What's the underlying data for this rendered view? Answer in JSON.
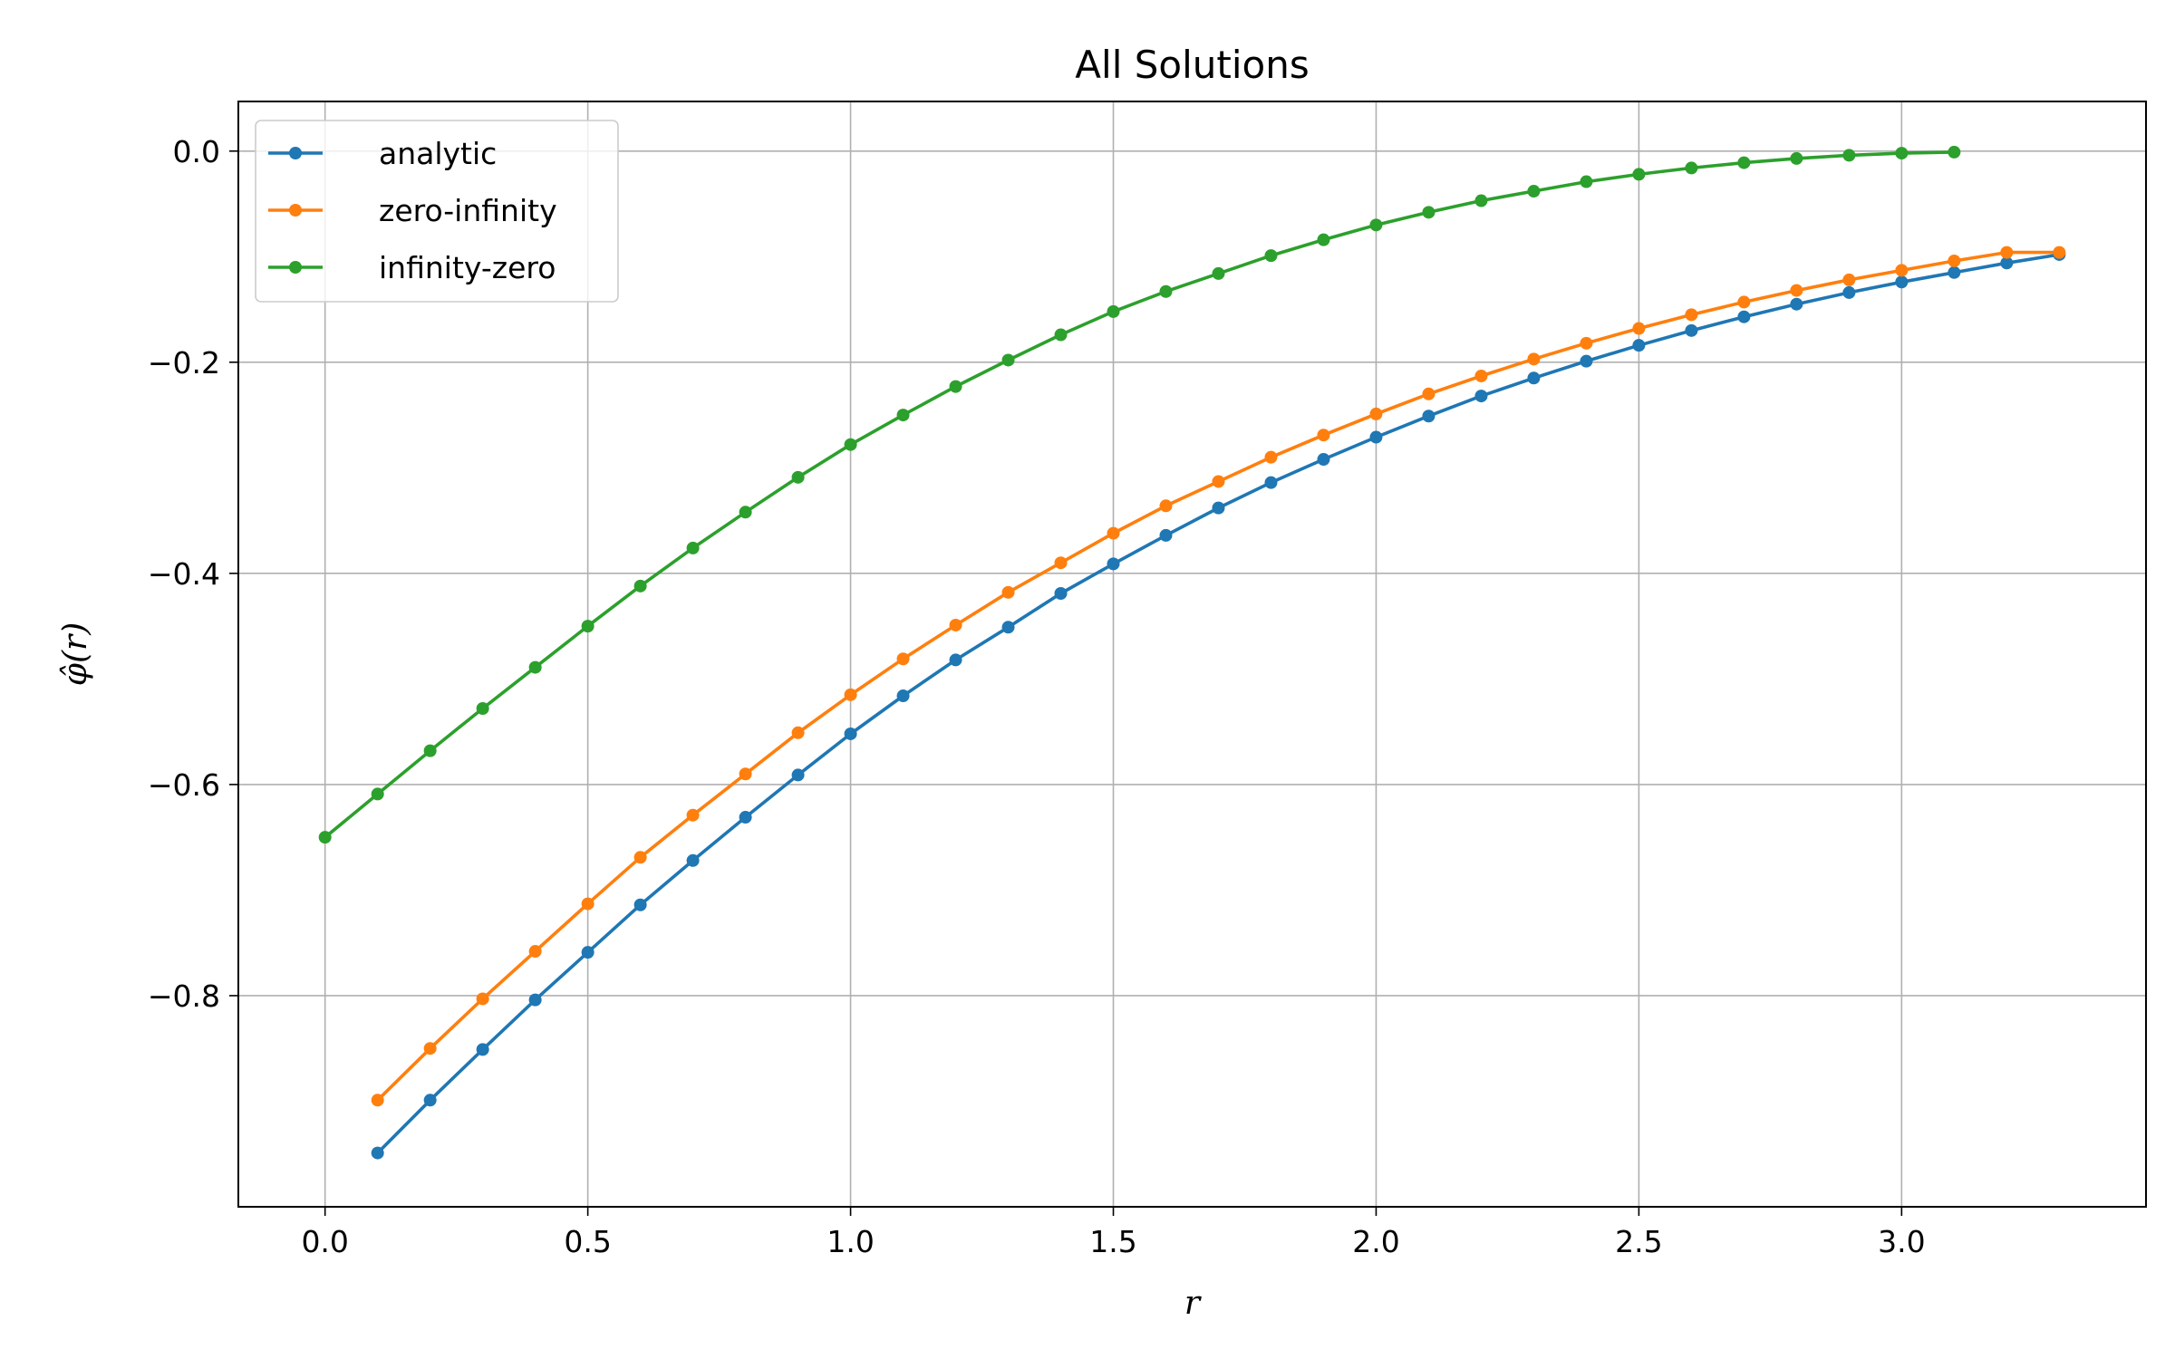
{
  "chart_data": {
    "type": "line",
    "title": "All Solutions",
    "xlabel": "r",
    "ylabel": "φ̂(r)",
    "xlim": [
      -0.165,
      3.465
    ],
    "ylim": [
      -1.0,
      0.047
    ],
    "xticks": [
      0.0,
      0.5,
      1.0,
      1.5,
      2.0,
      2.5,
      3.0
    ],
    "xtick_labels": [
      "0.0",
      "0.5",
      "1.0",
      "1.5",
      "2.0",
      "2.5",
      "3.0"
    ],
    "yticks": [
      0.0,
      -0.2,
      -0.4,
      -0.6,
      -0.8
    ],
    "ytick_labels": [
      "0.0",
      "−0.2",
      "−0.4",
      "−0.6",
      "−0.8"
    ],
    "grid": true,
    "legend_position": "top-left",
    "series": [
      {
        "name": "analytic",
        "color": "#1f77b4",
        "x": [
          0.1,
          0.2,
          0.3,
          0.4,
          0.5,
          0.6,
          0.7,
          0.8,
          0.9,
          1.0,
          1.1,
          1.2,
          1.3,
          1.4,
          1.5,
          1.6,
          1.7,
          1.8,
          1.9,
          2.0,
          2.1,
          2.2,
          2.3,
          2.4,
          2.5,
          2.6,
          2.7,
          2.8,
          2.9,
          3.0,
          3.1,
          3.2,
          3.3
        ],
        "y": [
          -0.949,
          -0.899,
          -0.851,
          -0.804,
          -0.759,
          -0.714,
          -0.672,
          -0.631,
          -0.591,
          -0.552,
          -0.516,
          -0.482,
          -0.451,
          -0.419,
          -0.391,
          -0.364,
          -0.338,
          -0.314,
          -0.292,
          -0.271,
          -0.251,
          -0.232,
          -0.215,
          -0.199,
          -0.184,
          -0.17,
          -0.157,
          -0.145,
          -0.134,
          -0.124,
          -0.115,
          -0.106,
          -0.098
        ]
      },
      {
        "name": "zero-infinity",
        "color": "#ff7f0e",
        "x": [
          0.1,
          0.2,
          0.3,
          0.4,
          0.5,
          0.6,
          0.7,
          0.8,
          0.9,
          1.0,
          1.1,
          1.2,
          1.3,
          1.4,
          1.5,
          1.6,
          1.7,
          1.8,
          1.9,
          2.0,
          2.1,
          2.2,
          2.3,
          2.4,
          2.5,
          2.6,
          2.7,
          2.8,
          2.9,
          3.0,
          3.1,
          3.2,
          3.3
        ],
        "y": [
          -0.899,
          -0.85,
          -0.803,
          -0.758,
          -0.713,
          -0.669,
          -0.629,
          -0.59,
          -0.551,
          -0.515,
          -0.481,
          -0.449,
          -0.418,
          -0.39,
          -0.362,
          -0.336,
          -0.313,
          -0.29,
          -0.269,
          -0.249,
          -0.23,
          -0.213,
          -0.197,
          -0.182,
          -0.168,
          -0.155,
          -0.143,
          -0.132,
          -0.122,
          -0.113,
          -0.104,
          -0.096,
          -0.096
        ]
      },
      {
        "name": "infinity-zero",
        "color": "#2ca02c",
        "x": [
          0.0,
          0.1,
          0.2,
          0.3,
          0.4,
          0.5,
          0.6,
          0.7,
          0.8,
          0.9,
          1.0,
          1.1,
          1.2,
          1.3,
          1.4,
          1.5,
          1.6,
          1.7,
          1.8,
          1.9,
          2.0,
          2.1,
          2.2,
          2.3,
          2.4,
          2.5,
          2.6,
          2.7,
          2.8,
          2.9,
          3.0,
          3.1
        ],
        "y": [
          -0.65,
          -0.609,
          -0.568,
          -0.528,
          -0.489,
          -0.45,
          -0.412,
          -0.376,
          -0.342,
          -0.309,
          -0.278,
          -0.25,
          -0.223,
          -0.198,
          -0.174,
          -0.152,
          -0.133,
          -0.116,
          -0.099,
          -0.084,
          -0.07,
          -0.058,
          -0.047,
          -0.038,
          -0.029,
          -0.022,
          -0.016,
          -0.011,
          -0.007,
          -0.004,
          -0.002,
          -0.001
        ]
      }
    ]
  }
}
